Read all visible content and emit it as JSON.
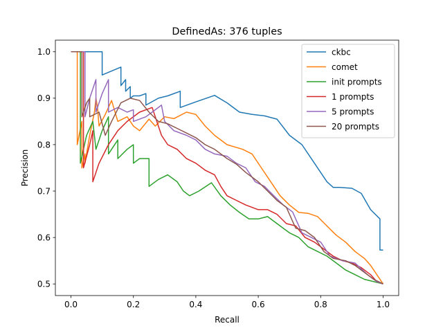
{
  "chart_data": {
    "type": "line",
    "title": "DefinedAs: 376 tuples",
    "xlabel": "Recall",
    "ylabel": "Precision",
    "xlim": [
      -0.05,
      1.05
    ],
    "ylim": [
      0.475,
      1.025
    ],
    "xticks": [
      0.0,
      0.2,
      0.4,
      0.6,
      0.8,
      1.0
    ],
    "xtick_labels": [
      "0.0",
      "0.2",
      "0.4",
      "0.6",
      "0.8",
      "1.0"
    ],
    "yticks": [
      0.5,
      0.6,
      0.7,
      0.8,
      0.9,
      1.0
    ],
    "ytick_labels": [
      "0.5",
      "0.6",
      "0.7",
      "0.8",
      "0.9",
      "1.0"
    ],
    "grid": false,
    "legend_position": "top-right",
    "series": [
      {
        "name": "ckbc",
        "color": "#1f77b4",
        "points": [
          [
            0.0,
            1.0
          ],
          [
            0.1,
            1.0
          ],
          [
            0.1,
            0.95
          ],
          [
            0.16,
            0.967
          ],
          [
            0.16,
            0.927
          ],
          [
            0.175,
            0.94
          ],
          [
            0.175,
            0.915
          ],
          [
            0.19,
            0.925
          ],
          [
            0.19,
            0.9
          ],
          [
            0.2,
            0.905
          ],
          [
            0.22,
            0.905
          ],
          [
            0.24,
            0.91
          ],
          [
            0.24,
            0.885
          ],
          [
            0.28,
            0.9
          ],
          [
            0.31,
            0.905
          ],
          [
            0.35,
            0.915
          ],
          [
            0.35,
            0.88
          ],
          [
            0.4,
            0.892
          ],
          [
            0.46,
            0.906
          ],
          [
            0.5,
            0.89
          ],
          [
            0.54,
            0.87
          ],
          [
            0.58,
            0.865
          ],
          [
            0.62,
            0.862
          ],
          [
            0.66,
            0.855
          ],
          [
            0.7,
            0.82
          ],
          [
            0.74,
            0.8
          ],
          [
            0.78,
            0.76
          ],
          [
            0.82,
            0.72
          ],
          [
            0.84,
            0.708
          ],
          [
            0.86,
            0.708
          ],
          [
            0.9,
            0.706
          ],
          [
            0.93,
            0.695
          ],
          [
            0.96,
            0.66
          ],
          [
            0.99,
            0.64
          ],
          [
            0.99,
            0.573
          ],
          [
            1.0,
            0.573
          ]
        ]
      },
      {
        "name": "comet",
        "color": "#ff7f0e",
        "points": [
          [
            0.0,
            1.0
          ],
          [
            0.02,
            1.0
          ],
          [
            0.02,
            0.8
          ],
          [
            0.035,
            0.85
          ],
          [
            0.035,
            0.75
          ],
          [
            0.045,
            0.78
          ],
          [
            0.045,
            0.76
          ],
          [
            0.06,
            0.82
          ],
          [
            0.075,
            0.87
          ],
          [
            0.08,
            0.9
          ],
          [
            0.085,
            0.88
          ],
          [
            0.09,
            0.84
          ],
          [
            0.11,
            0.865
          ],
          [
            0.13,
            0.895
          ],
          [
            0.15,
            0.85
          ],
          [
            0.18,
            0.86
          ],
          [
            0.2,
            0.84
          ],
          [
            0.22,
            0.83
          ],
          [
            0.25,
            0.855
          ],
          [
            0.27,
            0.84
          ],
          [
            0.3,
            0.86
          ],
          [
            0.33,
            0.856
          ],
          [
            0.37,
            0.87
          ],
          [
            0.4,
            0.865
          ],
          [
            0.43,
            0.84
          ],
          [
            0.46,
            0.82
          ],
          [
            0.5,
            0.8
          ],
          [
            0.55,
            0.79
          ],
          [
            0.58,
            0.78
          ],
          [
            0.61,
            0.75
          ],
          [
            0.64,
            0.72
          ],
          [
            0.67,
            0.69
          ],
          [
            0.7,
            0.67
          ],
          [
            0.73,
            0.654
          ],
          [
            0.76,
            0.652
          ],
          [
            0.79,
            0.645
          ],
          [
            0.82,
            0.625
          ],
          [
            0.85,
            0.605
          ],
          [
            0.88,
            0.59
          ],
          [
            0.91,
            0.57
          ],
          [
            0.94,
            0.555
          ],
          [
            0.96,
            0.54
          ],
          [
            0.98,
            0.52
          ],
          [
            1.0,
            0.5
          ]
        ]
      },
      {
        "name": "init prompts",
        "color": "#2ca02c",
        "points": [
          [
            0.0,
            1.0
          ],
          [
            0.03,
            1.0
          ],
          [
            0.03,
            0.76
          ],
          [
            0.05,
            0.82
          ],
          [
            0.07,
            0.85
          ],
          [
            0.08,
            0.79
          ],
          [
            0.1,
            0.83
          ],
          [
            0.12,
            0.86
          ],
          [
            0.12,
            0.78
          ],
          [
            0.15,
            0.81
          ],
          [
            0.15,
            0.77
          ],
          [
            0.18,
            0.79
          ],
          [
            0.2,
            0.8
          ],
          [
            0.2,
            0.76
          ],
          [
            0.22,
            0.77
          ],
          [
            0.25,
            0.77
          ],
          [
            0.25,
            0.71
          ],
          [
            0.28,
            0.725
          ],
          [
            0.31,
            0.735
          ],
          [
            0.34,
            0.72
          ],
          [
            0.36,
            0.7
          ],
          [
            0.38,
            0.69
          ],
          [
            0.41,
            0.7
          ],
          [
            0.45,
            0.718
          ],
          [
            0.48,
            0.69
          ],
          [
            0.51,
            0.67
          ],
          [
            0.54,
            0.654
          ],
          [
            0.57,
            0.64
          ],
          [
            0.6,
            0.64
          ],
          [
            0.63,
            0.645
          ],
          [
            0.66,
            0.63
          ],
          [
            0.7,
            0.61
          ],
          [
            0.73,
            0.6
          ],
          [
            0.76,
            0.58
          ],
          [
            0.79,
            0.57
          ],
          [
            0.82,
            0.56
          ],
          [
            0.85,
            0.545
          ],
          [
            0.88,
            0.53
          ],
          [
            0.91,
            0.52
          ],
          [
            0.94,
            0.51
          ],
          [
            0.97,
            0.505
          ],
          [
            1.0,
            0.5
          ]
        ]
      },
      {
        "name": "1 prompts",
        "color": "#d62728",
        "points": [
          [
            0.0,
            1.0
          ],
          [
            0.04,
            1.0
          ],
          [
            0.04,
            0.75
          ],
          [
            0.06,
            0.8
          ],
          [
            0.07,
            0.83
          ],
          [
            0.07,
            0.72
          ],
          [
            0.09,
            0.76
          ],
          [
            0.12,
            0.8
          ],
          [
            0.15,
            0.83
          ],
          [
            0.18,
            0.85
          ],
          [
            0.22,
            0.87
          ],
          [
            0.26,
            0.88
          ],
          [
            0.27,
            0.86
          ],
          [
            0.29,
            0.82
          ],
          [
            0.31,
            0.8
          ],
          [
            0.34,
            0.79
          ],
          [
            0.37,
            0.77
          ],
          [
            0.4,
            0.76
          ],
          [
            0.43,
            0.745
          ],
          [
            0.46,
            0.735
          ],
          [
            0.48,
            0.71
          ],
          [
            0.5,
            0.69
          ],
          [
            0.53,
            0.68
          ],
          [
            0.56,
            0.67
          ],
          [
            0.6,
            0.66
          ],
          [
            0.63,
            0.66
          ],
          [
            0.66,
            0.65
          ],
          [
            0.69,
            0.63
          ],
          [
            0.72,
            0.625
          ],
          [
            0.75,
            0.6
          ],
          [
            0.78,
            0.59
          ],
          [
            0.81,
            0.575
          ],
          [
            0.84,
            0.56
          ],
          [
            0.87,
            0.55
          ],
          [
            0.9,
            0.545
          ],
          [
            0.93,
            0.535
          ],
          [
            0.96,
            0.52
          ],
          [
            0.98,
            0.505
          ],
          [
            1.0,
            0.5
          ]
        ]
      },
      {
        "name": "5 prompts",
        "color": "#9467bd",
        "points": [
          [
            0.0,
            1.0
          ],
          [
            0.045,
            1.0
          ],
          [
            0.045,
            0.86
          ],
          [
            0.06,
            0.9
          ],
          [
            0.08,
            0.94
          ],
          [
            0.08,
            0.87
          ],
          [
            0.1,
            0.91
          ],
          [
            0.12,
            0.94
          ],
          [
            0.12,
            0.87
          ],
          [
            0.15,
            0.88
          ],
          [
            0.18,
            0.87
          ],
          [
            0.2,
            0.875
          ],
          [
            0.2,
            0.85
          ],
          [
            0.24,
            0.86
          ],
          [
            0.26,
            0.87
          ],
          [
            0.29,
            0.885
          ],
          [
            0.3,
            0.85
          ],
          [
            0.33,
            0.83
          ],
          [
            0.37,
            0.82
          ],
          [
            0.4,
            0.81
          ],
          [
            0.43,
            0.79
          ],
          [
            0.46,
            0.78
          ],
          [
            0.5,
            0.775
          ],
          [
            0.53,
            0.76
          ],
          [
            0.56,
            0.75
          ],
          [
            0.59,
            0.72
          ],
          [
            0.62,
            0.71
          ],
          [
            0.65,
            0.69
          ],
          [
            0.68,
            0.67
          ],
          [
            0.71,
            0.655
          ],
          [
            0.74,
            0.61
          ],
          [
            0.77,
            0.6
          ],
          [
            0.8,
            0.59
          ],
          [
            0.83,
            0.56
          ],
          [
            0.87,
            0.55
          ],
          [
            0.91,
            0.545
          ],
          [
            0.95,
            0.52
          ],
          [
            0.98,
            0.505
          ],
          [
            1.0,
            0.5
          ]
        ]
      },
      {
        "name": "20 prompts",
        "color": "#8c564b",
        "points": [
          [
            0.0,
            1.0
          ],
          [
            0.035,
            1.0
          ],
          [
            0.035,
            0.86
          ],
          [
            0.05,
            0.89
          ],
          [
            0.06,
            0.9
          ],
          [
            0.06,
            0.86
          ],
          [
            0.09,
            0.87
          ],
          [
            0.11,
            0.82
          ],
          [
            0.13,
            0.85
          ],
          [
            0.16,
            0.89
          ],
          [
            0.19,
            0.9
          ],
          [
            0.22,
            0.895
          ],
          [
            0.25,
            0.87
          ],
          [
            0.28,
            0.85
          ],
          [
            0.31,
            0.845
          ],
          [
            0.34,
            0.835
          ],
          [
            0.37,
            0.825
          ],
          [
            0.4,
            0.815
          ],
          [
            0.43,
            0.8
          ],
          [
            0.46,
            0.79
          ],
          [
            0.5,
            0.77
          ],
          [
            0.53,
            0.758
          ],
          [
            0.56,
            0.74
          ],
          [
            0.6,
            0.72
          ],
          [
            0.63,
            0.7
          ],
          [
            0.66,
            0.68
          ],
          [
            0.69,
            0.665
          ],
          [
            0.72,
            0.62
          ],
          [
            0.75,
            0.615
          ],
          [
            0.78,
            0.6
          ],
          [
            0.81,
            0.57
          ],
          [
            0.84,
            0.555
          ],
          [
            0.88,
            0.55
          ],
          [
            0.91,
            0.54
          ],
          [
            0.94,
            0.525
          ],
          [
            0.97,
            0.51
          ],
          [
            1.0,
            0.5
          ]
        ]
      }
    ]
  }
}
